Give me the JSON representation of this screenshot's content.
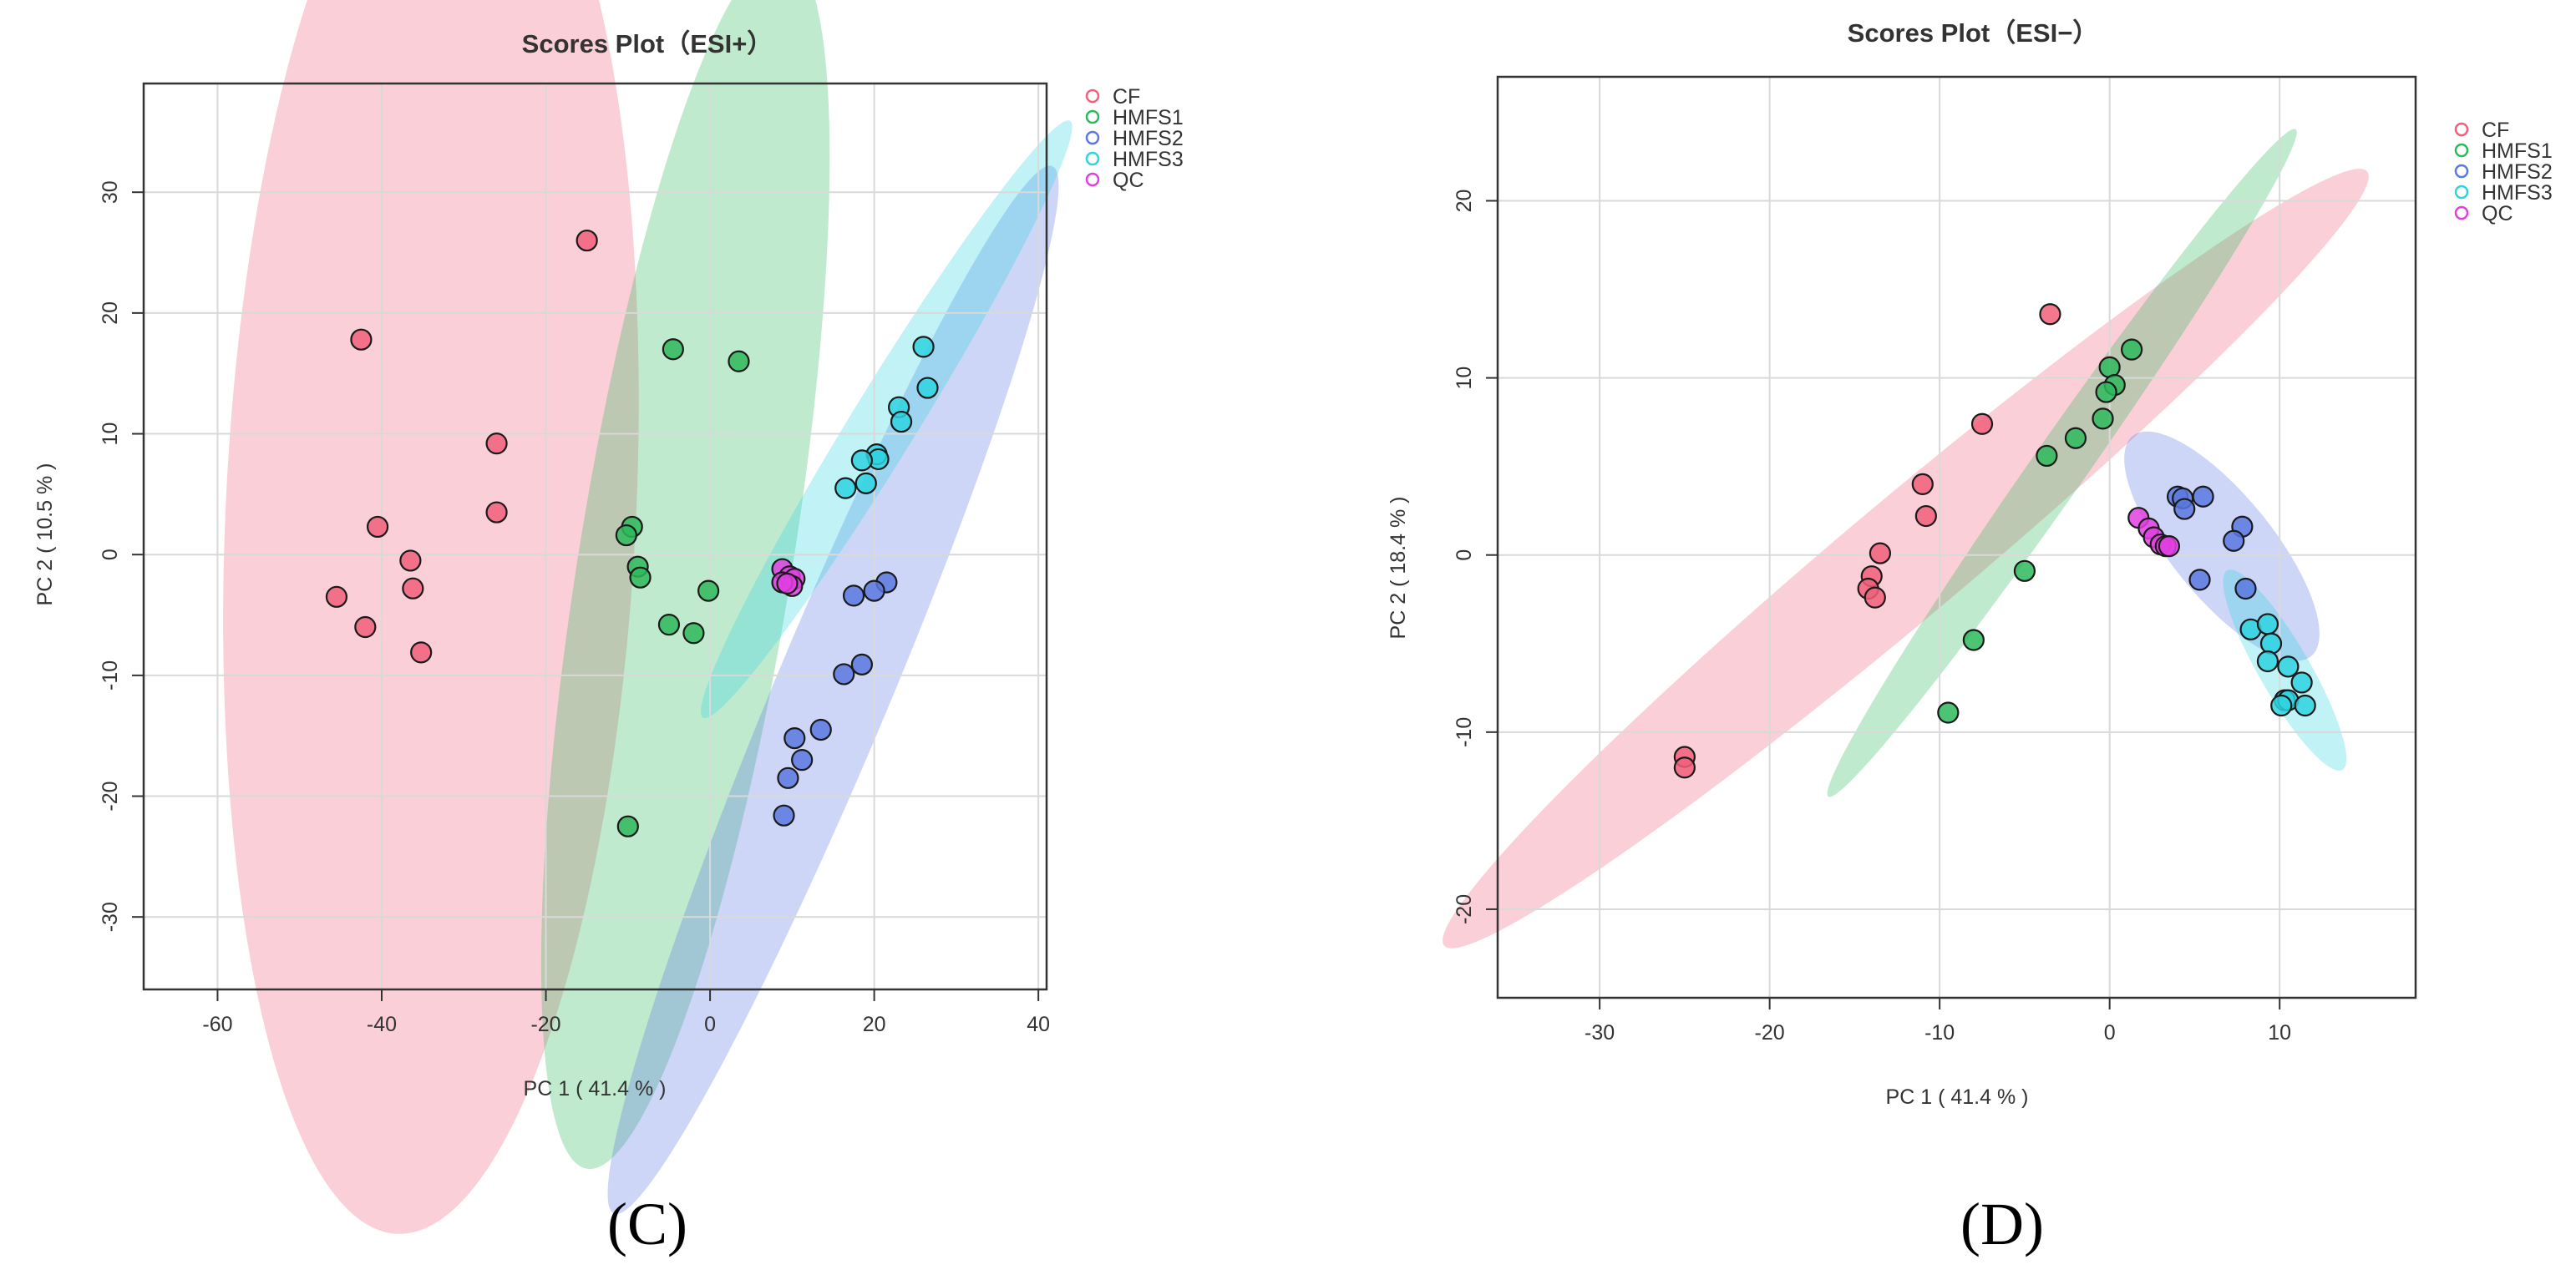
{
  "charts": [
    {
      "panel_label": "(C)",
      "chart_data": {
        "type": "scatter",
        "title": "Scores Plot（ESI+）",
        "xlabel": "PC 1 ( 41.4 % )",
        "ylabel": "PC 2 ( 10.5 % )",
        "xlim": [
          -69,
          41
        ],
        "ylim": [
          -36,
          39
        ],
        "xticks": [
          "-60",
          "-40",
          "-20",
          "0",
          "20",
          "40"
        ],
        "yticks": [
          "-30",
          "-20",
          "-10",
          "0",
          "10",
          "20",
          "30"
        ],
        "grid": true,
        "legend_position": "top-right",
        "series": [
          {
            "name": "CF",
            "color": "#f0607a",
            "points": [
              [
                -15,
                26
              ],
              [
                -42.5,
                17.8
              ],
              [
                -26,
                9.2
              ],
              [
                -26,
                3.5
              ],
              [
                -40.5,
                2.3
              ],
              [
                -36.5,
                -0.5
              ],
              [
                -36.2,
                -2.8
              ],
              [
                -45.5,
                -3.5
              ],
              [
                -42,
                -6
              ],
              [
                -35.2,
                -8.1
              ]
            ],
            "ellipse": {
              "cx": -34,
              "cy": 3.7,
              "rx": 25,
              "ry": 60,
              "angle": 2.7
            }
          },
          {
            "name": "HMFS1",
            "color": "#2eb85c",
            "points": [
              [
                -4.5,
                17
              ],
              [
                3.5,
                16
              ],
              [
                -9.5,
                2.3
              ],
              [
                -10.2,
                1.6
              ],
              [
                -8.8,
                -1
              ],
              [
                -8.5,
                -1.9
              ],
              [
                -0.2,
                -3
              ],
              [
                -5,
                -5.8
              ],
              [
                -2,
                -6.5
              ],
              [
                -10,
                -22.5
              ]
            ],
            "ellipse": {
              "cx": -3,
              "cy": -0.5,
              "rx": 13,
              "ry": 51,
              "angle": 9.2
            }
          },
          {
            "name": "HMFS2",
            "color": "#5a78e0",
            "points": [
              [
                21.5,
                -2.3
              ],
              [
                20,
                -3
              ],
              [
                17.5,
                -3.4
              ],
              [
                18.5,
                -9.1
              ],
              [
                16.3,
                -9.9
              ],
              [
                13.5,
                -14.5
              ],
              [
                10.3,
                -15.2
              ],
              [
                11.2,
                -17
              ],
              [
                9.5,
                -18.5
              ],
              [
                9,
                -21.6
              ]
            ],
            "ellipse": {
              "cx": 15,
              "cy": -11.2,
              "rx": 7,
              "ry": 47,
              "angle": 22.7
            }
          },
          {
            "name": "HMFS3",
            "color": "#2ed3e0",
            "points": [
              [
                26,
                17.2
              ],
              [
                26.5,
                13.8
              ],
              [
                23,
                12.2
              ],
              [
                23.3,
                11
              ],
              [
                20.3,
                8.3
              ],
              [
                20.5,
                7.9
              ],
              [
                18.5,
                7.8
              ],
              [
                19,
                5.9
              ],
              [
                16.5,
                5.5
              ]
            ],
            "ellipse": {
              "cx": 21.5,
              "cy": 11.2,
              "rx": 4,
              "ry": 29,
              "angle": 31.6
            }
          },
          {
            "name": "QC",
            "color": "#e040e0",
            "points": [
              [
                8.8,
                -1.2
              ],
              [
                9.7,
                -1.8
              ],
              [
                10.3,
                -2
              ],
              [
                10,
                -2.6
              ],
              [
                8.8,
                -2.3
              ],
              [
                9.4,
                -2.4
              ]
            ],
            "ellipse": null
          }
        ]
      }
    },
    {
      "panel_label": "(D)",
      "chart_data": {
        "type": "scatter",
        "title": "Scores Plot（ESI−）",
        "xlabel": "PC 1 ( 41.4 % )",
        "ylabel": "PC 2 ( 18.4 % )",
        "xlim": [
          -36,
          18
        ],
        "ylim": [
          -25,
          27
        ],
        "xticks": [
          "-30",
          "-20",
          "-10",
          "0",
          "10"
        ],
        "yticks": [
          "-20",
          "-10",
          "0",
          "10",
          "20"
        ],
        "grid": true,
        "legend_position": "top-right",
        "series": [
          {
            "name": "CF",
            "color": "#f0607a",
            "points": [
              [
                -3.5,
                13.6
              ],
              [
                -7.5,
                7.4
              ],
              [
                -11,
                4
              ],
              [
                -10.8,
                2.2
              ],
              [
                -13.5,
                0.1
              ],
              [
                -14,
                -1.2
              ],
              [
                -14.2,
                -1.9
              ],
              [
                -13.8,
                -2.4
              ],
              [
                -25,
                -11.4
              ],
              [
                -25,
                -12
              ]
            ],
            "ellipse": {
              "cx": -12,
              "cy": -0.2,
              "rx": 3.5,
              "ry": 34,
              "angle": 50
            }
          },
          {
            "name": "HMFS1",
            "color": "#2eb85c",
            "points": [
              [
                1.3,
                11.6
              ],
              [
                0,
                10.6
              ],
              [
                0.3,
                9.6
              ],
              [
                -0.2,
                9.2
              ],
              [
                -0.4,
                7.7
              ],
              [
                -2,
                6.6
              ],
              [
                -3.7,
                5.6
              ],
              [
                -5,
                -0.9
              ],
              [
                -8,
                -4.8
              ],
              [
                -9.5,
                -8.9
              ]
            ],
            "ellipse": {
              "cx": -2.8,
              "cy": 5.2,
              "rx": 1.6,
              "ry": 23,
              "angle": 35
            }
          },
          {
            "name": "HMFS2",
            "color": "#5a78e0",
            "points": [
              [
                4,
                3.3
              ],
              [
                4.3,
                3.2
              ],
              [
                5.5,
                3.3
              ],
              [
                4.4,
                2.6
              ],
              [
                7.8,
                1.6
              ],
              [
                7.3,
                0.8
              ],
              [
                5.3,
                -1.4
              ],
              [
                8,
                -1.9
              ]
            ],
            "ellipse": {
              "cx": 6.6,
              "cy": 0.5,
              "rx": 3,
              "ry": 8,
              "angle": -39
            }
          },
          {
            "name": "HMFS3",
            "color": "#2ed3e0",
            "points": [
              [
                8.3,
                -4.2
              ],
              [
                9.3,
                -3.9
              ],
              [
                9.5,
                -5
              ],
              [
                9.3,
                -6
              ],
              [
                10.5,
                -6.3
              ],
              [
                11.3,
                -7.2
              ],
              [
                10.3,
                -8.2
              ],
              [
                10.5,
                -8.2
              ],
              [
                10.1,
                -8.5
              ],
              [
                11.5,
                -8.5
              ]
            ],
            "ellipse": {
              "cx": 10.3,
              "cy": -6.5,
              "rx": 1.5,
              "ry": 6.5,
              "angle": -30
            }
          },
          {
            "name": "QC",
            "color": "#e040e0",
            "points": [
              [
                1.7,
                2.1
              ],
              [
                2.3,
                1.5
              ],
              [
                2.6,
                1
              ],
              [
                3,
                0.6
              ],
              [
                3.3,
                0.5
              ],
              [
                3.5,
                0.5
              ]
            ],
            "ellipse": null
          }
        ]
      }
    }
  ]
}
